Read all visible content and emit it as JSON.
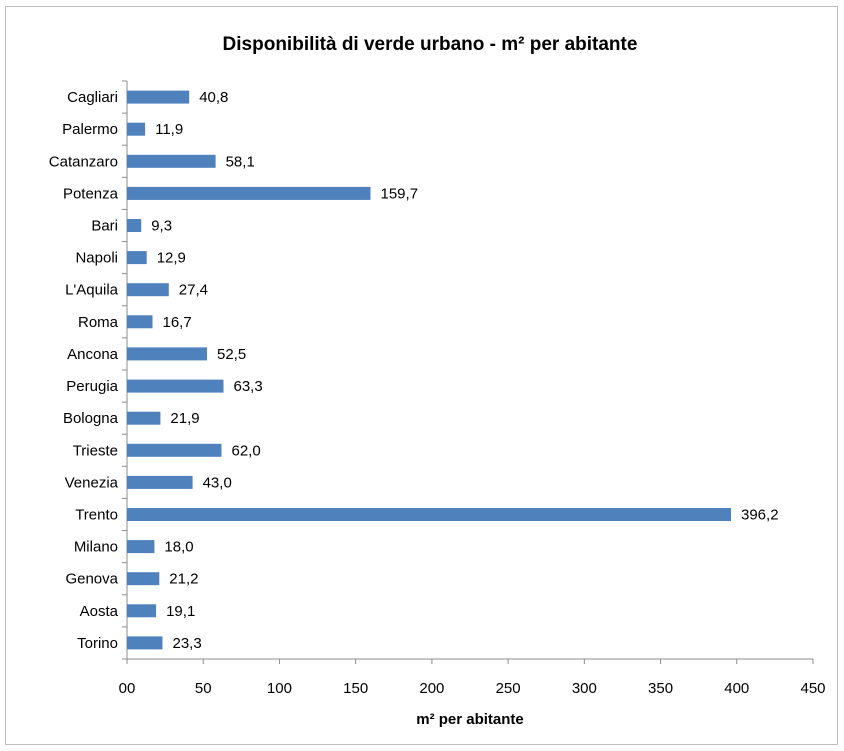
{
  "chart_data": {
    "type": "bar",
    "orientation": "horizontal",
    "title": "Disponibilità di verde urbano  - m² per abitante",
    "xlabel": "m² per abitante",
    "ylabel": "",
    "categories": [
      "Cagliari",
      "Palermo",
      "Catanzaro",
      "Potenza",
      "Bari",
      "Napoli",
      "L'Aquila",
      "Roma",
      "Ancona",
      "Perugia",
      "Bologna",
      "Trieste",
      "Venezia",
      "Trento",
      "Milano",
      "Genova",
      "Aosta",
      "Torino"
    ],
    "values": [
      40.8,
      11.9,
      58.1,
      159.7,
      9.3,
      12.9,
      27.4,
      16.7,
      52.5,
      63.3,
      21.9,
      62.0,
      43.0,
      396.2,
      18.0,
      21.2,
      19.1,
      23.3
    ],
    "value_labels": [
      "40,8",
      "11,9",
      "58,1",
      "159,7",
      "9,3",
      "12,9",
      "27,4",
      "16,7",
      "52,5",
      "63,3",
      "21,9",
      "62,0",
      "43,0",
      "396,2",
      "18,0",
      "21,2",
      "19,1",
      "23,3"
    ],
    "xlim": [
      0,
      450
    ],
    "xticks": [
      0,
      50,
      100,
      150,
      200,
      250,
      300,
      350,
      400,
      450
    ],
    "xtick_labels": [
      "00",
      "50",
      "100",
      "150",
      "200",
      "250",
      "300",
      "350",
      "400",
      "450"
    ],
    "grid": false,
    "legend": "none",
    "bar_color": "#4f81bd"
  }
}
